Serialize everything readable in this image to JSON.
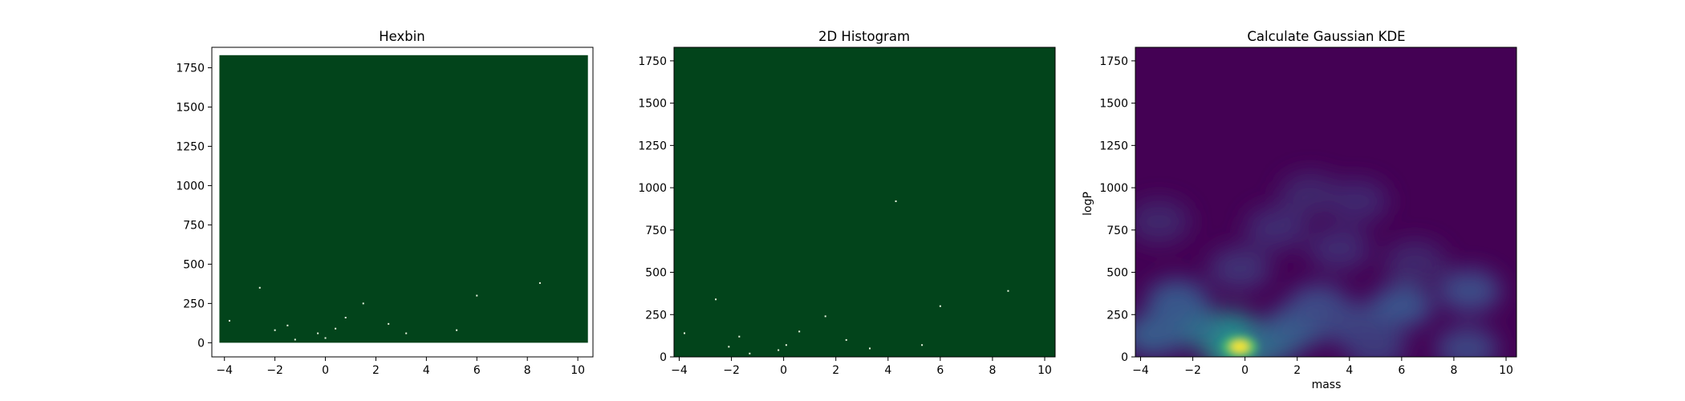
{
  "chart_data": [
    {
      "type": "heatmap",
      "title": "Hexbin",
      "xlabel": "",
      "ylabel": "",
      "xlim": [
        -4.5,
        10.6
      ],
      "ylim": [
        -90,
        1880
      ],
      "xticks": [
        "−4",
        "−2",
        "0",
        "2",
        "4",
        "6",
        "8",
        "10"
      ],
      "xtick_values": [
        -4,
        -2,
        0,
        2,
        4,
        6,
        8,
        10
      ],
      "yticks": [
        "0",
        "250",
        "500",
        "750",
        "1000",
        "1250",
        "1500",
        "1750"
      ],
      "ytick_values": [
        0,
        250,
        500,
        750,
        1000,
        1250,
        1500,
        1750
      ],
      "fill_extent": {
        "x": [
          -4.2,
          10.4
        ],
        "y": [
          0,
          1830
        ]
      },
      "fill_color": "#02441b",
      "background": "#ffffff",
      "grid": false,
      "bright_points": [
        {
          "x": 0.0,
          "y": 30
        },
        {
          "x": -0.3,
          "y": 60
        },
        {
          "x": 0.4,
          "y": 90
        },
        {
          "x": -1.2,
          "y": 20
        },
        {
          "x": -2.0,
          "y": 80
        },
        {
          "x": -1.5,
          "y": 110
        },
        {
          "x": 0.8,
          "y": 160
        },
        {
          "x": 2.5,
          "y": 120
        },
        {
          "x": 6.0,
          "y": 300
        },
        {
          "x": 8.5,
          "y": 380
        },
        {
          "x": -3.8,
          "y": 140
        },
        {
          "x": 3.2,
          "y": 60
        },
        {
          "x": 1.5,
          "y": 250
        },
        {
          "x": 5.2,
          "y": 80
        },
        {
          "x": -2.6,
          "y": 350
        }
      ]
    },
    {
      "type": "heatmap",
      "title": "2D Histogram",
      "xlabel": "",
      "ylabel": "",
      "xlim": [
        -4.2,
        10.4
      ],
      "ylim": [
        0,
        1830
      ],
      "xticks": [
        "−4",
        "−2",
        "0",
        "2",
        "4",
        "6",
        "8",
        "10"
      ],
      "xtick_values": [
        -4,
        -2,
        0,
        2,
        4,
        6,
        8,
        10
      ],
      "yticks": [
        "0",
        "250",
        "500",
        "750",
        "1000",
        "1250",
        "1500",
        "1750"
      ],
      "ytick_values": [
        0,
        250,
        500,
        750,
        1000,
        1250,
        1500,
        1750
      ],
      "fill_color": "#02441b",
      "grid": false,
      "bright_points": [
        {
          "x": -0.2,
          "y": 40
        },
        {
          "x": 0.1,
          "y": 70
        },
        {
          "x": -1.3,
          "y": 20
        },
        {
          "x": -2.1,
          "y": 60
        },
        {
          "x": -1.7,
          "y": 120
        },
        {
          "x": 0.6,
          "y": 150
        },
        {
          "x": 2.4,
          "y": 100
        },
        {
          "x": 6.0,
          "y": 300
        },
        {
          "x": 8.6,
          "y": 390
        },
        {
          "x": -3.8,
          "y": 140
        },
        {
          "x": 3.3,
          "y": 50
        },
        {
          "x": 1.6,
          "y": 240
        },
        {
          "x": 5.3,
          "y": 70
        },
        {
          "x": -2.6,
          "y": 340
        },
        {
          "x": 4.3,
          "y": 920
        }
      ]
    },
    {
      "type": "heatmap",
      "title": "Calculate Gaussian KDE",
      "xlabel": "mass",
      "ylabel": "logP",
      "xlim": [
        -4.2,
        10.4
      ],
      "ylim": [
        0,
        1830
      ],
      "xticks": [
        "−4",
        "−2",
        "0",
        "2",
        "4",
        "6",
        "8",
        "10"
      ],
      "xtick_values": [
        -4,
        -2,
        0,
        2,
        4,
        6,
        8,
        10
      ],
      "yticks": [
        "0",
        "250",
        "500",
        "750",
        "1000",
        "1250",
        "1500",
        "1750"
      ],
      "ytick_values": [
        0,
        250,
        500,
        750,
        1000,
        1250,
        1500,
        1750
      ],
      "colormap": "viridis",
      "base_color": "#440154",
      "grid": false,
      "density_peaks": [
        {
          "x": -0.2,
          "y": 60,
          "level": 1.0
        },
        {
          "x": -0.6,
          "y": 140,
          "level": 0.45
        },
        {
          "x": -2.0,
          "y": 180,
          "level": 0.32
        },
        {
          "x": -3.5,
          "y": 130,
          "level": 0.24
        },
        {
          "x": -2.6,
          "y": 330,
          "level": 0.22
        },
        {
          "x": 1.0,
          "y": 90,
          "level": 0.3
        },
        {
          "x": 2.0,
          "y": 180,
          "level": 0.24
        },
        {
          "x": 2.8,
          "y": 300,
          "level": 0.18
        },
        {
          "x": 4.0,
          "y": 200,
          "level": 0.16
        },
        {
          "x": 6.0,
          "y": 300,
          "level": 0.2
        },
        {
          "x": 8.6,
          "y": 390,
          "level": 0.18
        },
        {
          "x": 8.5,
          "y": 50,
          "level": 0.16
        },
        {
          "x": 5.0,
          "y": 60,
          "level": 0.13
        },
        {
          "x": -0.2,
          "y": 520,
          "level": 0.1
        },
        {
          "x": 1.2,
          "y": 760,
          "level": 0.08
        },
        {
          "x": 3.6,
          "y": 640,
          "level": 0.08
        },
        {
          "x": 4.3,
          "y": 920,
          "level": 0.07
        },
        {
          "x": 2.5,
          "y": 960,
          "level": 0.06
        },
        {
          "x": -3.3,
          "y": 800,
          "level": 0.06
        },
        {
          "x": 6.5,
          "y": 560,
          "level": 0.06
        }
      ]
    }
  ]
}
